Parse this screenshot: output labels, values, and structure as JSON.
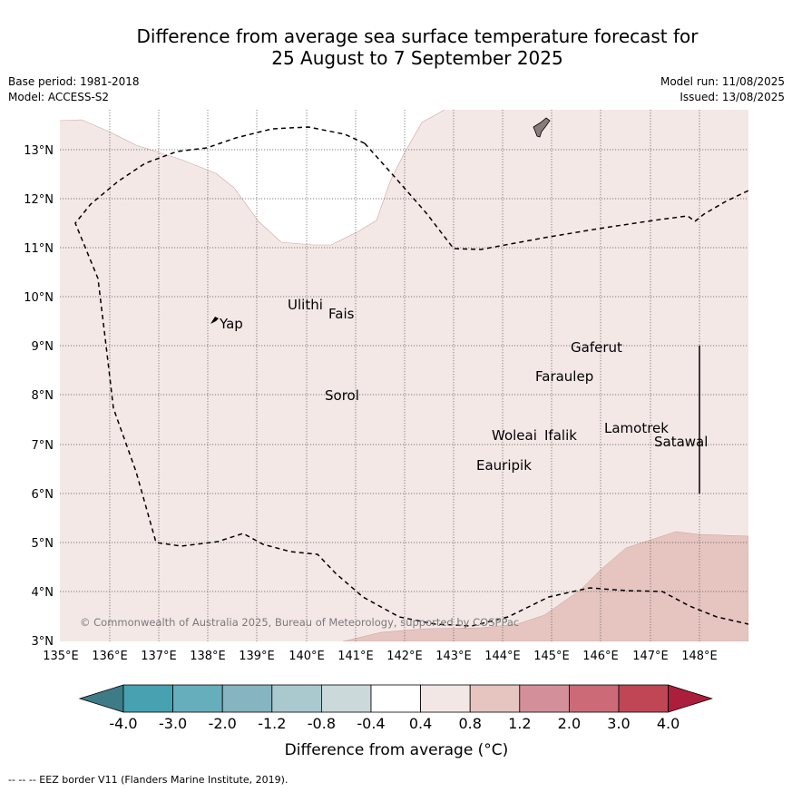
{
  "title": {
    "line1": "Difference from average sea surface temperature forecast for",
    "line2": "25 August to 7 September 2025"
  },
  "meta": {
    "base_period": "Base period: 1981-2018",
    "model": "Model: ACCESS-S2",
    "model_run": "Model run: 11/08/2025",
    "issued": "Issued: 13/08/2025"
  },
  "map": {
    "lon_ticks": [
      "135°E",
      "136°E",
      "137°E",
      "138°E",
      "139°E",
      "140°E",
      "141°E",
      "142°E",
      "143°E",
      "144°E",
      "145°E",
      "146°E",
      "147°E",
      "148°E"
    ],
    "lat_ticks": [
      "3°N",
      "4°N",
      "5°N",
      "6°N",
      "7°N",
      "8°N",
      "9°N",
      "10°N",
      "11°N",
      "12°N",
      "13°N"
    ],
    "places": [
      "Ulithi",
      "Fais",
      "Yap",
      "Gaferut",
      "Faraulep",
      "Sorol",
      "Lamotrek",
      "Woleai",
      "Ifalik",
      "Satawal",
      "Eauripik"
    ],
    "copyright": "© Commonwealth of Australia 2025, Bureau of Meteorology, supported by COSPPac",
    "fill_colors": {
      "band_0_4_0_8": "#f4e8e6",
      "band_0_8_1_2": "#e6c5c0",
      "coast": "#8a7a7a"
    }
  },
  "colorbar": {
    "ticks": [
      "-4.0",
      "-3.0",
      "-2.0",
      "-1.2",
      "-0.8",
      "-0.4",
      "0.4",
      "0.8",
      "1.2",
      "2.0",
      "3.0",
      "4.0"
    ],
    "colors": [
      "#3d7c86",
      "#47a1b1",
      "#67aebd",
      "#86b4c0",
      "#a9c9ce",
      "#cbd9da",
      "#ffffff",
      "#f3e7e5",
      "#e6c5c0",
      "#d4909a",
      "#cc6a77",
      "#c04656",
      "#ad1e3c"
    ],
    "label": "Difference from average (°C)"
  },
  "footer": "--  --  -- EEZ border V11 (Flanders Marine Institute, 2019)."
}
